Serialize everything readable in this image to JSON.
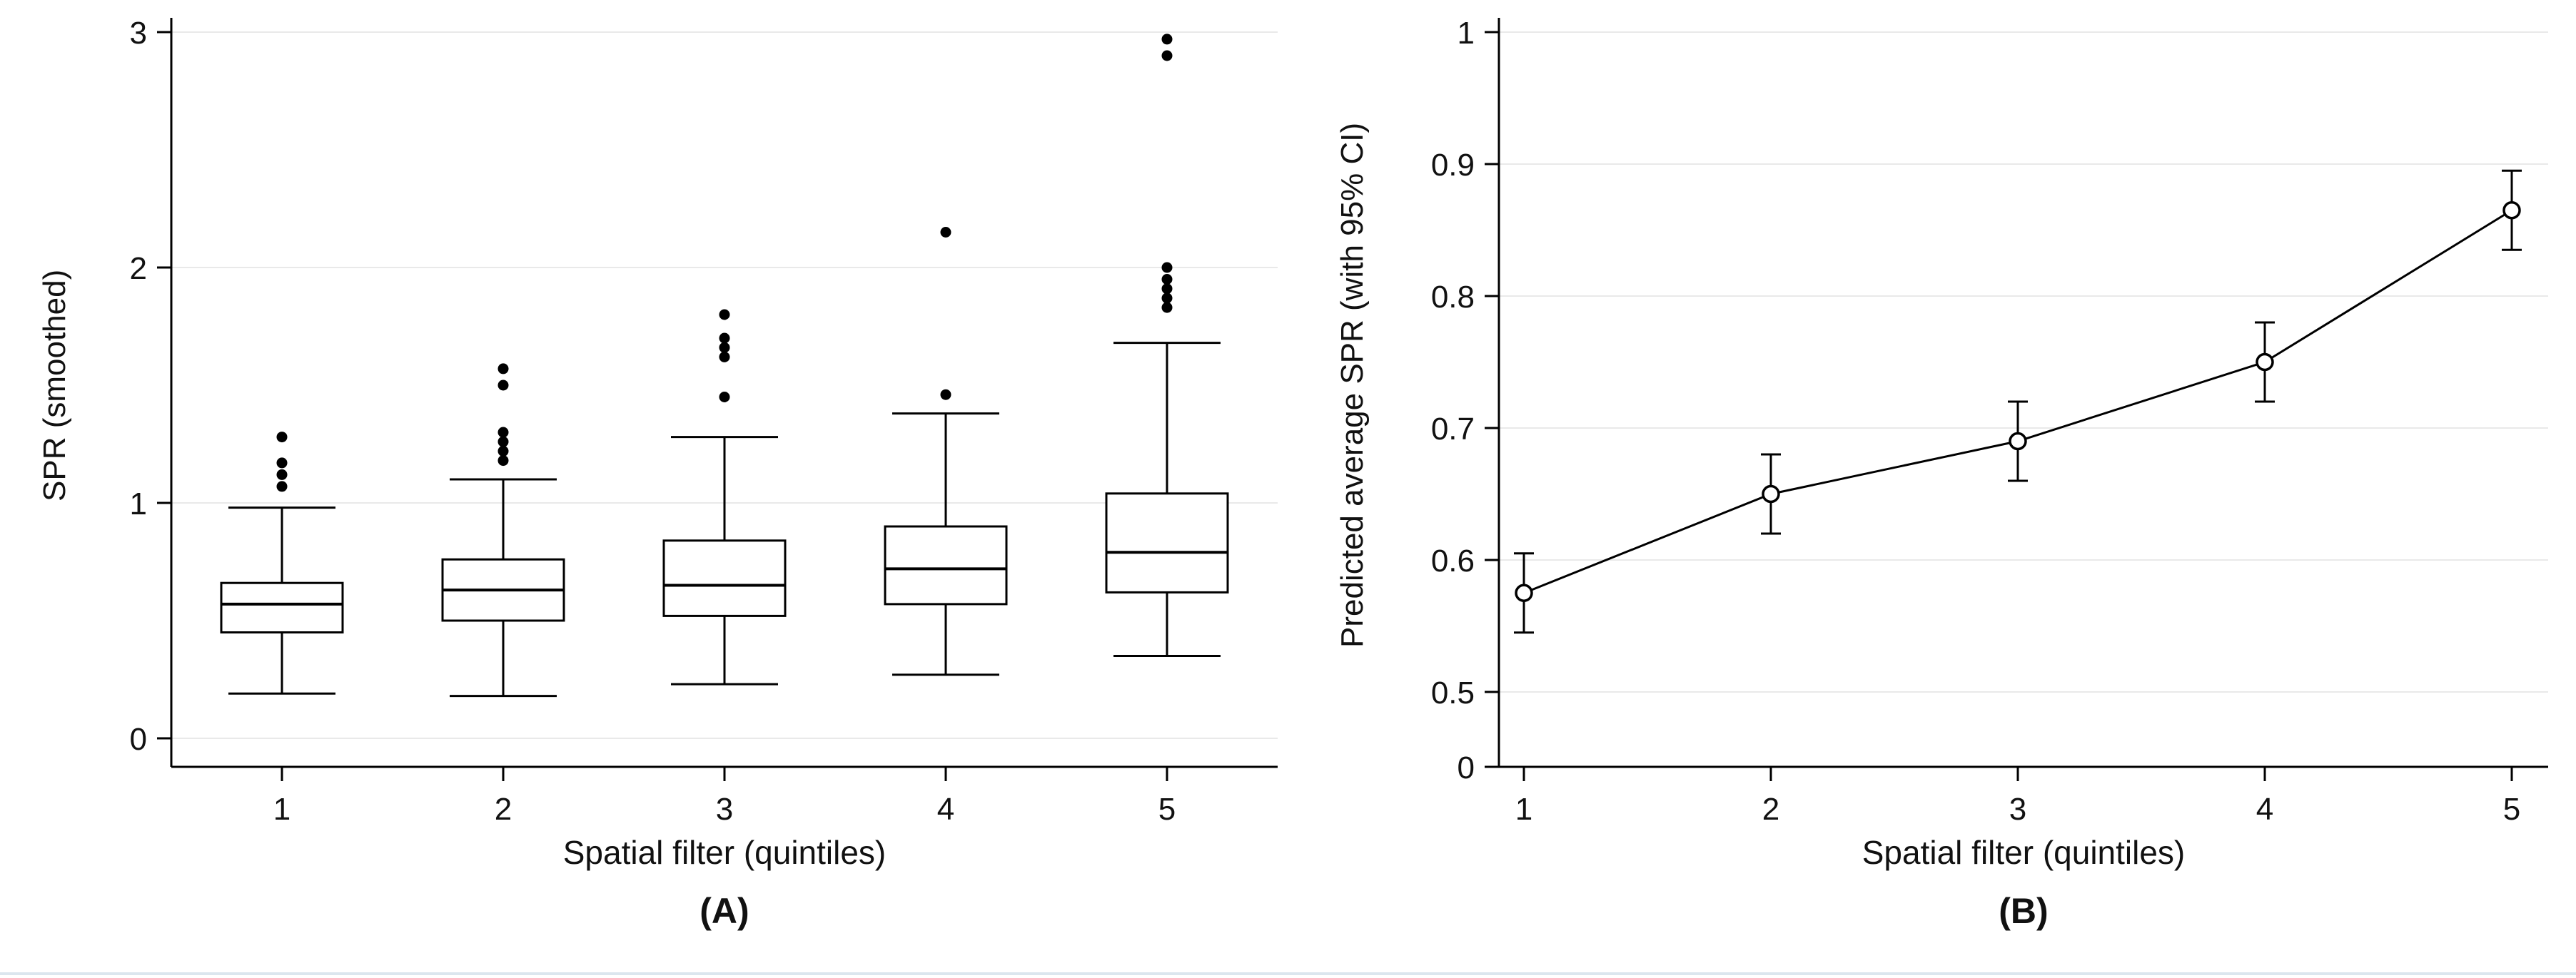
{
  "colors": {
    "marks": "#000000",
    "grid": "#e9e9e9",
    "background": "#ffffff",
    "bottom_rule": "#dbe6ee",
    "text": "#111111"
  },
  "chart_data": [
    {
      "type": "box",
      "panel_label": "(A)",
      "title": "",
      "xlabel": "Spatial filter (quintiles)",
      "ylabel": "SPR (smoothed)",
      "categories": [
        "1",
        "2",
        "3",
        "4",
        "5"
      ],
      "yticks": [
        0,
        1,
        2,
        3
      ],
      "ylim": [
        0,
        3.05
      ],
      "grid": "horizontal",
      "legend": "none",
      "boxes": [
        {
          "category": "1",
          "whisker_low": 0.19,
          "q1": 0.45,
          "median": 0.57,
          "q3": 0.66,
          "whisker_high": 0.98,
          "outliers": [
            1.07,
            1.12,
            1.17,
            1.28
          ]
        },
        {
          "category": "2",
          "whisker_low": 0.18,
          "q1": 0.5,
          "median": 0.63,
          "q3": 0.76,
          "whisker_high": 1.1,
          "outliers": [
            1.18,
            1.22,
            1.26,
            1.3,
            1.5,
            1.57
          ]
        },
        {
          "category": "3",
          "whisker_low": 0.23,
          "q1": 0.52,
          "median": 0.65,
          "q3": 0.84,
          "whisker_high": 1.28,
          "outliers": [
            1.45,
            1.62,
            1.66,
            1.7,
            1.8
          ]
        },
        {
          "category": "4",
          "whisker_low": 0.27,
          "q1": 0.57,
          "median": 0.72,
          "q3": 0.9,
          "whisker_high": 1.38,
          "outliers": [
            1.46,
            2.15
          ]
        },
        {
          "category": "5",
          "whisker_low": 0.35,
          "q1": 0.62,
          "median": 0.79,
          "q3": 1.04,
          "whisker_high": 1.68,
          "outliers": [
            1.83,
            1.87,
            1.91,
            1.95,
            2.0,
            2.9,
            2.97
          ]
        }
      ]
    },
    {
      "type": "line",
      "panel_label": "(B)",
      "title": "",
      "xlabel": "Spatial filter (quintiles)",
      "ylabel": "Predicted average SPR (with 95% CI)",
      "categories": [
        "1",
        "2",
        "3",
        "4",
        "5"
      ],
      "yticks": [
        1,
        0.9,
        0.8,
        0.7,
        0.6,
        0.5,
        0
      ],
      "ylim": [
        0.5,
        1.0
      ],
      "y_axis_break_at_zero": true,
      "grid": "horizontal",
      "legend": "none",
      "marker": "open-circle",
      "points": [
        {
          "category": "1",
          "y": 0.575,
          "ci_low": 0.545,
          "ci_high": 0.605
        },
        {
          "category": "2",
          "y": 0.65,
          "ci_low": 0.62,
          "ci_high": 0.68
        },
        {
          "category": "3",
          "y": 0.69,
          "ci_low": 0.66,
          "ci_high": 0.72
        },
        {
          "category": "4",
          "y": 0.75,
          "ci_low": 0.72,
          "ci_high": 0.78
        },
        {
          "category": "5",
          "y": 0.865,
          "ci_low": 0.835,
          "ci_high": 0.895
        }
      ]
    }
  ]
}
